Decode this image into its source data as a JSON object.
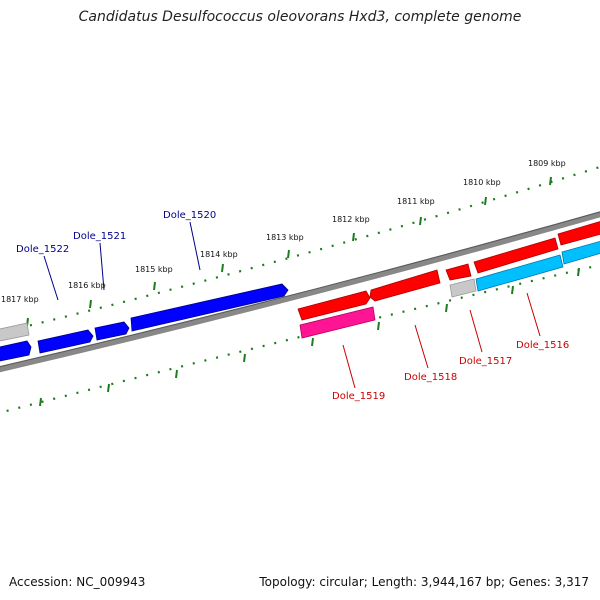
{
  "title": "Candidatus Desulfococcus oleovorans Hxd3, complete genome",
  "footer": {
    "accession": "Accession: NC_009943",
    "topology": "Topology: circular; Length: 3,944,167 bp; Genes: 3,317"
  },
  "colors": {
    "reverse_strand_gene": "#0000ff",
    "forward_strand_gene": "#ff0000",
    "forward_strand_gene_alt": "#ff1493",
    "forward_strand_gene_light": "#00bfff",
    "other_gene": "#bdbdbd",
    "backbone": "#7a7a7a",
    "ticks": "#1e7a1e",
    "reverse_label": "#00008b",
    "forward_label": "#cc0000"
  },
  "ticks": [
    {
      "label": "1817 kbp"
    },
    {
      "label": "1816 kbp"
    },
    {
      "label": "1815 kbp"
    },
    {
      "label": "1814 kbp"
    },
    {
      "label": "1813 kbp"
    },
    {
      "label": "1812 kbp"
    },
    {
      "label": "1811 kbp"
    },
    {
      "label": "1810 kbp"
    },
    {
      "label": "1809 kbp"
    }
  ],
  "genes": [
    {
      "name": "Dole_1522",
      "strand": "reverse"
    },
    {
      "name": "Dole_1521",
      "strand": "reverse"
    },
    {
      "name": "Dole_1520",
      "strand": "reverse"
    },
    {
      "name": "Dole_1519",
      "strand": "forward"
    },
    {
      "name": "Dole_1518",
      "strand": "forward"
    },
    {
      "name": "Dole_1517",
      "strand": "forward"
    },
    {
      "name": "Dole_1516",
      "strand": "forward"
    }
  ]
}
